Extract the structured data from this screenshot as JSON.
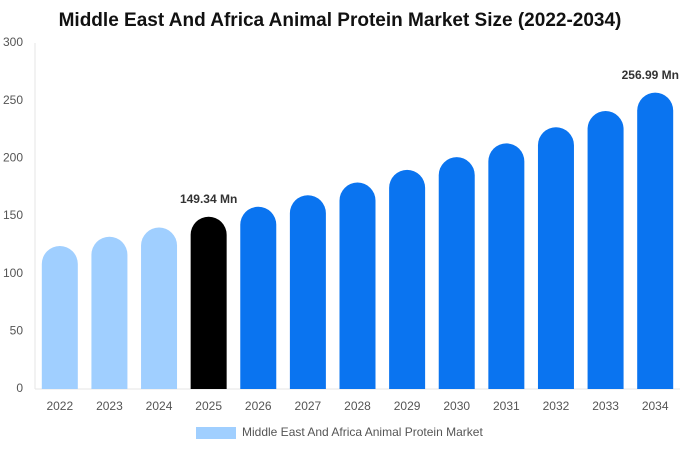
{
  "chart_data": {
    "type": "bar",
    "title": "Middle East And Africa Animal Protein Market Size (2022-2034)",
    "categories": [
      "2022",
      "2023",
      "2024",
      "2025",
      "2026",
      "2027",
      "2028",
      "2029",
      "2030",
      "2031",
      "2032",
      "2033",
      "2034"
    ],
    "series": [
      {
        "name": "Middle East And Africa Animal Protein Market",
        "color": "#a0cfff",
        "colors": [
          "#a0cfff",
          "#a0cfff",
          "#a0cfff",
          "#000000",
          "#0a74f0",
          "#0a74f0",
          "#0a74f0",
          "#0a74f0",
          "#0a74f0",
          "#0a74f0",
          "#0a74f0",
          "#0a74f0",
          "#0a74f0"
        ],
        "values": [
          124,
          132,
          140,
          149.34,
          158,
          168,
          179,
          190,
          201,
          213,
          227,
          241,
          256.99
        ],
        "value_labels": [
          null,
          null,
          null,
          "149.34 Mn",
          null,
          null,
          null,
          null,
          null,
          null,
          null,
          null,
          "256.99 Mn"
        ]
      }
    ],
    "ylim": [
      0,
      300
    ],
    "yticks": [
      0,
      50,
      100,
      150,
      200,
      250,
      300
    ],
    "grid": false
  }
}
